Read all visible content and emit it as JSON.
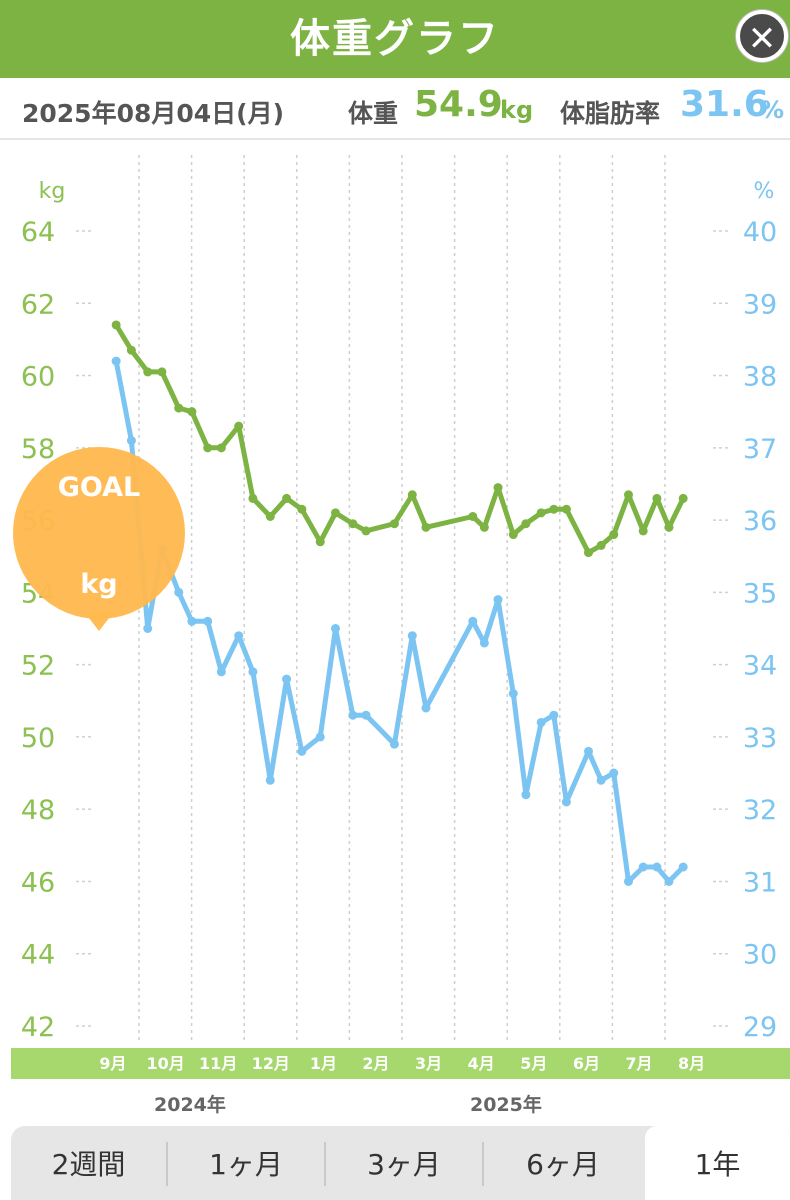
{
  "header": {
    "title": "体重グラフ",
    "close_icon": "close-icon"
  },
  "info": {
    "date": "2025年08月04日(月)",
    "weight_label": "体重",
    "weight_value": "54.9",
    "weight_unit": "kg",
    "fat_label": "体脂肪率",
    "fat_value": "31.6",
    "fat_unit": "%"
  },
  "goal": {
    "label": "GOAL",
    "unit": "kg"
  },
  "colors": {
    "accent": "#7cb342",
    "weight": "#7cb342",
    "fat": "#7cc4f2",
    "goal": "#ffb84d",
    "month_band": "#a6d86d"
  },
  "chart_data": {
    "type": "line",
    "left_unit": "kg",
    "right_unit": "%",
    "left_ylim": [
      42,
      64
    ],
    "right_ylim": [
      29,
      40
    ],
    "left_ticks": [
      "42",
      "44",
      "46",
      "48",
      "50",
      "52",
      "54",
      "56",
      "58",
      "60",
      "62",
      "64"
    ],
    "right_ticks": [
      "29",
      "30",
      "31",
      "32",
      "33",
      "34",
      "35",
      "36",
      "37",
      "38",
      "39",
      "40"
    ],
    "x_range": [
      0,
      11.8
    ],
    "months": [
      "9月",
      "10月",
      "11月",
      "12月",
      "1月",
      "2月",
      "3月",
      "4月",
      "5月",
      "6月",
      "7月",
      "8月"
    ],
    "years": [
      "2024年",
      "2025年"
    ],
    "series": [
      {
        "axis": "left",
        "x": [
          0.06,
          0.35,
          0.66,
          0.93,
          1.25,
          1.5,
          1.8,
          2.06,
          2.39,
          2.66,
          2.99,
          3.3,
          3.59,
          3.94,
          4.23,
          4.56,
          4.81,
          5.35,
          5.69,
          5.95,
          6.84,
          7.06,
          7.32,
          7.61,
          7.85,
          8.14,
          8.38,
          8.62,
          9.04,
          9.28,
          9.52,
          9.8,
          10.08,
          10.34,
          10.57,
          10.84
        ],
        "y": [
          61.4,
          60.7,
          60.1,
          60.1,
          59.1,
          59.0,
          58.0,
          58.0,
          58.6,
          56.6,
          56.1,
          56.6,
          56.3,
          55.4,
          56.2,
          55.9,
          55.7,
          55.9,
          56.7,
          55.8,
          56.1,
          55.8,
          56.9,
          55.6,
          55.9,
          56.2,
          56.3,
          56.3,
          55.1,
          55.3,
          55.6,
          56.7,
          55.7,
          56.6,
          55.8,
          56.6
        ]
      },
      {
        "axis": "right",
        "x": [
          0.06,
          0.35,
          0.66,
          0.93,
          1.25,
          1.5,
          1.8,
          2.06,
          2.39,
          2.66,
          2.99,
          3.3,
          3.59,
          3.94,
          4.23,
          4.56,
          4.81,
          5.35,
          5.69,
          5.95,
          6.84,
          7.06,
          7.32,
          7.61,
          7.85,
          8.14,
          8.38,
          8.62,
          9.04,
          9.28,
          9.52,
          9.8,
          10.08,
          10.34,
          10.57,
          10.84
        ],
        "y": [
          38.2,
          37.1,
          34.5,
          35.6,
          35.0,
          34.6,
          34.6,
          33.9,
          34.4,
          33.9,
          32.4,
          33.8,
          32.8,
          33.0,
          34.5,
          33.3,
          33.3,
          32.9,
          34.4,
          33.4,
          34.6,
          34.3,
          34.9,
          33.6,
          32.2,
          33.2,
          33.3,
          32.1,
          32.8,
          32.4,
          32.5,
          31.0,
          31.2,
          31.2,
          31.0,
          31.2
        ]
      }
    ]
  },
  "tabs": [
    {
      "label": "2週間",
      "active": false
    },
    {
      "label": "1ヶ月",
      "active": false
    },
    {
      "label": "3ヶ月",
      "active": false
    },
    {
      "label": "6ヶ月",
      "active": false
    },
    {
      "label": "1年",
      "active": true
    }
  ]
}
